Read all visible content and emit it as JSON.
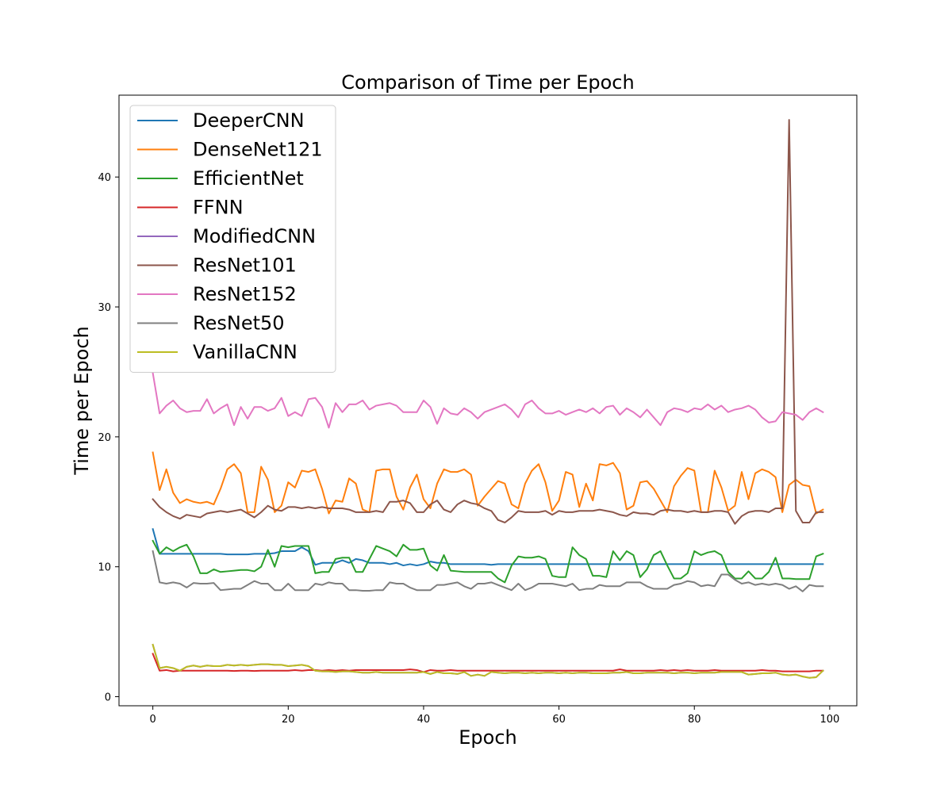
{
  "chart_data": {
    "type": "line",
    "title": "Comparison of Time per Epoch",
    "xlabel": "Epoch",
    "ylabel": "Time per Epoch",
    "xlim": [
      -5,
      104
    ],
    "ylim": [
      -0.7,
      46.3
    ],
    "xticks": [
      0,
      20,
      40,
      60,
      80,
      100
    ],
    "yticks": [
      0,
      10,
      20,
      30,
      40
    ],
    "grid": false,
    "legend_position": "top-left",
    "x_start": 0,
    "series": [
      {
        "name": "DeeperCNN",
        "color": "#1f77b4",
        "values": [
          12.9,
          11.0,
          11.0,
          11.0,
          11.0,
          11.0,
          11.0,
          11.0,
          11.0,
          11.0,
          11.0,
          10.95,
          10.95,
          10.95,
          10.95,
          11.0,
          11.0,
          11.0,
          11.05,
          11.2,
          11.2,
          11.2,
          11.5,
          11.2,
          10.15,
          10.3,
          10.3,
          10.3,
          10.5,
          10.3,
          10.6,
          10.5,
          10.3,
          10.3,
          10.3,
          10.2,
          10.3,
          10.1,
          10.2,
          10.1,
          10.2,
          10.4,
          10.3,
          10.3,
          10.2,
          10.2,
          10.2,
          10.2,
          10.2,
          10.2,
          10.15,
          10.2,
          10.2,
          10.2,
          10.2,
          10.2,
          10.2,
          10.2,
          10.2,
          10.2,
          10.2,
          10.2,
          10.2,
          10.2,
          10.2,
          10.2,
          10.2,
          10.2,
          10.2,
          10.2,
          10.2,
          10.2,
          10.2,
          10.2,
          10.2,
          10.2,
          10.2,
          10.2,
          10.2,
          10.2,
          10.2,
          10.2,
          10.2,
          10.2,
          10.2,
          10.2,
          10.2,
          10.2,
          10.2,
          10.2,
          10.2,
          10.2,
          10.2,
          10.2,
          10.2,
          10.2,
          10.2,
          10.2,
          10.2,
          10.2
        ]
      },
      {
        "name": "DenseNet121",
        "color": "#ff7f0e",
        "values": [
          18.8,
          15.9,
          17.5,
          15.7,
          14.9,
          15.2,
          15.0,
          14.9,
          15.0,
          14.8,
          16.0,
          17.5,
          17.9,
          17.2,
          14.2,
          14.2,
          17.7,
          16.7,
          14.2,
          14.7,
          16.5,
          16.1,
          17.4,
          17.3,
          17.5,
          16.0,
          14.1,
          15.1,
          15.0,
          16.8,
          16.4,
          14.4,
          14.2,
          17.4,
          17.5,
          17.5,
          15.4,
          14.4,
          16.1,
          17.1,
          15.2,
          14.5,
          16.4,
          17.5,
          17.3,
          17.3,
          17.5,
          17.1,
          14.7,
          15.4,
          16.0,
          16.6,
          16.4,
          14.8,
          14.5,
          16.4,
          17.4,
          17.9,
          16.5,
          14.3,
          15.1,
          17.3,
          17.1,
          14.6,
          16.4,
          15.1,
          17.9,
          17.8,
          18.0,
          17.2,
          14.4,
          14.7,
          16.5,
          16.6,
          16.0,
          15.1,
          14.2,
          16.2,
          17.0,
          17.6,
          17.4,
          14.2,
          14.2,
          17.4,
          16.1,
          14.3,
          14.7,
          17.3,
          15.2,
          17.2,
          17.5,
          17.3,
          16.9,
          14.2,
          16.3,
          16.7,
          16.3,
          16.2,
          14.1,
          14.4
        ]
      },
      {
        "name": "EfficientNet",
        "color": "#2ca02c",
        "values": [
          12.0,
          11.0,
          11.5,
          11.2,
          11.5,
          11.7,
          10.8,
          9.5,
          9.5,
          9.8,
          9.6,
          9.65,
          9.7,
          9.75,
          9.75,
          9.65,
          10.0,
          11.3,
          10.0,
          11.6,
          11.5,
          11.6,
          11.6,
          11.6,
          9.5,
          9.6,
          9.6,
          10.6,
          10.7,
          10.7,
          9.6,
          9.6,
          10.6,
          11.6,
          11.4,
          11.2,
          10.8,
          11.7,
          11.3,
          11.3,
          11.4,
          10.1,
          9.7,
          10.9,
          9.7,
          9.65,
          9.6,
          9.6,
          9.6,
          9.6,
          9.6,
          9.1,
          8.8,
          10.1,
          10.8,
          10.7,
          10.7,
          10.8,
          10.6,
          9.3,
          9.2,
          9.2,
          11.5,
          10.9,
          10.6,
          9.3,
          9.3,
          9.2,
          11.2,
          10.5,
          11.2,
          10.9,
          9.2,
          9.8,
          10.9,
          11.2,
          10.1,
          9.1,
          9.1,
          9.5,
          11.2,
          10.9,
          11.1,
          11.2,
          10.9,
          9.6,
          9.1,
          9.1,
          9.65,
          9.1,
          9.1,
          9.6,
          10.7,
          9.1,
          9.1,
          9.05,
          9.05,
          9.05,
          10.8,
          11.0
        ]
      },
      {
        "name": "FFNN",
        "color": "#d62728",
        "values": [
          3.3,
          2.0,
          2.05,
          1.95,
          2.0,
          2.0,
          2.0,
          2.0,
          2.0,
          2.0,
          2.0,
          2.0,
          1.98,
          2.0,
          2.0,
          1.98,
          2.0,
          2.0,
          2.0,
          2.0,
          2.0,
          2.05,
          2.0,
          2.05,
          2.05,
          2.0,
          2.05,
          2.0,
          2.05,
          2.0,
          2.05,
          2.05,
          2.05,
          2.05,
          2.05,
          2.05,
          2.05,
          2.05,
          2.1,
          2.05,
          1.9,
          2.05,
          2.0,
          2.0,
          2.05,
          2.0,
          2.0,
          2.0,
          2.0,
          2.0,
          2.0,
          2.0,
          2.0,
          2.0,
          2.0,
          2.0,
          2.0,
          2.0,
          2.0,
          2.0,
          2.0,
          2.0,
          2.0,
          2.0,
          2.0,
          2.0,
          2.0,
          2.0,
          2.0,
          2.1,
          2.0,
          2.0,
          2.0,
          2.0,
          2.0,
          2.05,
          2.0,
          2.05,
          2.0,
          2.05,
          2.0,
          2.0,
          2.0,
          2.05,
          2.0,
          2.0,
          2.0,
          2.0,
          2.0,
          2.0,
          2.05,
          2.0,
          2.0,
          1.95,
          1.95,
          1.95,
          1.95,
          1.95,
          2.0,
          2.0
        ]
      },
      {
        "name": "ModifiedCNN",
        "color": "#9467bd",
        "values": [
          4.0,
          2.2,
          2.3,
          2.2,
          2.0,
          2.3,
          2.4,
          2.3,
          2.4,
          2.35,
          2.35,
          2.45,
          2.4,
          2.45,
          2.4,
          2.45,
          2.5,
          2.5,
          2.45,
          2.45,
          2.35,
          2.4,
          2.45,
          2.35,
          2.0,
          1.95,
          1.95,
          1.9,
          1.95,
          1.95,
          1.9,
          1.85,
          1.85,
          1.9,
          1.85,
          1.85,
          1.85,
          1.85,
          1.85,
          1.85,
          1.9,
          1.75,
          1.9,
          1.8,
          1.8,
          1.75,
          1.9,
          1.6,
          1.7,
          1.6,
          1.9,
          1.85,
          1.8,
          1.85,
          1.85,
          1.8,
          1.85,
          1.8,
          1.85,
          1.85,
          1.8,
          1.85,
          1.8,
          1.85,
          1.85,
          1.8,
          1.8,
          1.8,
          1.85,
          1.85,
          1.9,
          1.8,
          1.8,
          1.85,
          1.85,
          1.85,
          1.85,
          1.8,
          1.85,
          1.85,
          1.8,
          1.85,
          1.85,
          1.85,
          1.9,
          1.9,
          1.9,
          1.9,
          1.7,
          1.75,
          1.8,
          1.8,
          1.85,
          1.7,
          1.65,
          1.7,
          1.55,
          1.45,
          1.5,
          2.0
        ]
      },
      {
        "name": "ResNet101",
        "color": "#8c564b",
        "values": [
          15.2,
          14.6,
          14.2,
          13.9,
          13.7,
          14.0,
          13.9,
          13.8,
          14.1,
          14.2,
          14.3,
          14.2,
          14.3,
          14.4,
          14.1,
          13.8,
          14.2,
          14.7,
          14.4,
          14.3,
          14.6,
          14.6,
          14.5,
          14.6,
          14.5,
          14.6,
          14.5,
          14.5,
          14.5,
          14.4,
          14.2,
          14.2,
          14.2,
          14.3,
          14.2,
          15.0,
          15.0,
          15.1,
          14.9,
          14.2,
          14.2,
          14.8,
          15.1,
          14.4,
          14.2,
          14.8,
          15.1,
          14.9,
          14.8,
          14.5,
          14.3,
          13.6,
          13.4,
          13.8,
          14.3,
          14.2,
          14.2,
          14.2,
          14.3,
          14.0,
          14.3,
          14.2,
          14.2,
          14.3,
          14.3,
          14.3,
          14.4,
          14.3,
          14.2,
          14.0,
          13.9,
          14.2,
          14.1,
          14.1,
          14.0,
          14.3,
          14.4,
          14.3,
          14.3,
          14.2,
          14.3,
          14.2,
          14.2,
          14.3,
          14.3,
          14.2,
          13.3,
          13.9,
          14.2,
          14.3,
          14.3,
          14.2,
          14.5,
          14.5,
          44.4,
          14.3,
          13.4,
          13.4,
          14.2,
          14.2
        ]
      },
      {
        "name": "ResNet152",
        "color": "#e377c2",
        "values": [
          24.9,
          21.8,
          22.4,
          22.8,
          22.2,
          21.9,
          22.0,
          22.0,
          22.9,
          21.8,
          22.2,
          22.5,
          20.9,
          22.3,
          21.4,
          22.3,
          22.3,
          22.0,
          22.2,
          23.0,
          21.6,
          21.9,
          21.6,
          22.9,
          23.0,
          22.3,
          20.7,
          22.6,
          21.9,
          22.5,
          22.5,
          22.8,
          22.1,
          22.4,
          22.5,
          22.6,
          22.4,
          21.9,
          21.9,
          21.9,
          22.8,
          22.3,
          21.0,
          22.2,
          21.8,
          21.7,
          22.2,
          21.9,
          21.4,
          21.9,
          22.1,
          22.3,
          22.5,
          22.1,
          21.5,
          22.5,
          22.8,
          22.2,
          21.8,
          21.8,
          22.0,
          21.7,
          21.9,
          22.1,
          21.9,
          22.2,
          21.8,
          22.3,
          22.4,
          21.7,
          22.2,
          21.9,
          21.5,
          22.1,
          21.5,
          20.9,
          21.9,
          22.2,
          22.1,
          21.9,
          22.2,
          22.1,
          22.5,
          22.1,
          22.4,
          21.9,
          22.1,
          22.2,
          22.4,
          22.1,
          21.5,
          21.1,
          21.2,
          21.9,
          21.8,
          21.7,
          21.3,
          21.9,
          22.2,
          21.9
        ]
      },
      {
        "name": "ResNet50",
        "color": "#7f7f7f",
        "values": [
          11.2,
          8.8,
          8.7,
          8.8,
          8.7,
          8.4,
          8.75,
          8.7,
          8.7,
          8.75,
          8.2,
          8.25,
          8.3,
          8.3,
          8.6,
          8.9,
          8.7,
          8.7,
          8.2,
          8.2,
          8.7,
          8.2,
          8.2,
          8.2,
          8.7,
          8.6,
          8.8,
          8.7,
          8.7,
          8.2,
          8.2,
          8.15,
          8.15,
          8.2,
          8.2,
          8.8,
          8.7,
          8.7,
          8.4,
          8.2,
          8.2,
          8.2,
          8.6,
          8.6,
          8.7,
          8.8,
          8.5,
          8.3,
          8.7,
          8.7,
          8.8,
          8.6,
          8.4,
          8.2,
          8.7,
          8.2,
          8.4,
          8.7,
          8.7,
          8.7,
          8.6,
          8.5,
          8.7,
          8.2,
          8.3,
          8.3,
          8.6,
          8.5,
          8.5,
          8.5,
          8.8,
          8.8,
          8.8,
          8.5,
          8.3,
          8.3,
          8.3,
          8.6,
          8.7,
          8.9,
          8.8,
          8.5,
          8.6,
          8.5,
          9.4,
          9.4,
          9.0,
          8.7,
          8.8,
          8.6,
          8.7,
          8.6,
          8.7,
          8.6,
          8.3,
          8.5,
          8.1,
          8.6,
          8.5,
          8.5
        ]
      },
      {
        "name": "VanillaCNN",
        "color": "#bcbd22",
        "values": [
          4.0,
          2.2,
          2.3,
          2.2,
          2.0,
          2.3,
          2.4,
          2.3,
          2.4,
          2.35,
          2.35,
          2.45,
          2.4,
          2.45,
          2.4,
          2.45,
          2.5,
          2.5,
          2.45,
          2.45,
          2.35,
          2.4,
          2.45,
          2.35,
          2.0,
          1.95,
          1.95,
          1.9,
          1.95,
          1.95,
          1.9,
          1.85,
          1.85,
          1.9,
          1.85,
          1.85,
          1.85,
          1.85,
          1.85,
          1.85,
          1.9,
          1.75,
          1.9,
          1.8,
          1.8,
          1.75,
          1.9,
          1.6,
          1.7,
          1.6,
          1.9,
          1.85,
          1.8,
          1.85,
          1.85,
          1.8,
          1.85,
          1.8,
          1.85,
          1.85,
          1.8,
          1.85,
          1.8,
          1.85,
          1.85,
          1.8,
          1.8,
          1.8,
          1.85,
          1.85,
          1.9,
          1.8,
          1.8,
          1.85,
          1.85,
          1.85,
          1.85,
          1.8,
          1.85,
          1.85,
          1.8,
          1.85,
          1.85,
          1.85,
          1.9,
          1.9,
          1.9,
          1.9,
          1.7,
          1.75,
          1.8,
          1.8,
          1.85,
          1.7,
          1.65,
          1.7,
          1.55,
          1.45,
          1.5,
          2.0
        ]
      }
    ]
  }
}
